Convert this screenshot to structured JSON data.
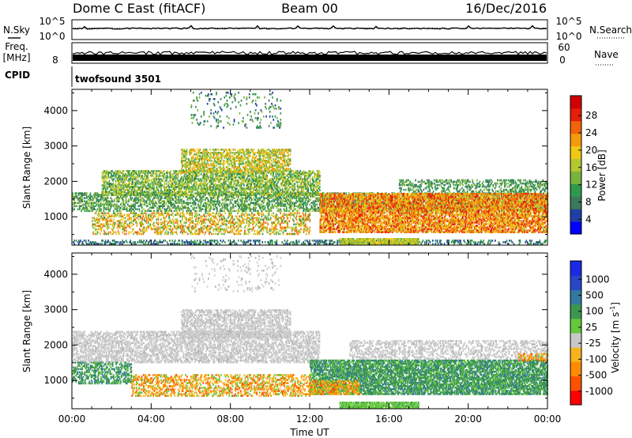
{
  "header": {
    "station": "Dome C East (fitACF)",
    "beam": "Beam 00",
    "date": "16/Dec/2016"
  },
  "noise_panel": {
    "left_label": "N.Sky",
    "right_label": "N.Search",
    "left_ticks": [
      "10^5",
      "10^0"
    ],
    "right_ticks": [
      "10^5",
      "10^0"
    ]
  },
  "freq_panel": {
    "left_label_line1": "Freq.",
    "left_label_line2": "[MHz]",
    "left_tick": "8",
    "right_label": "Nave",
    "right_ticks": [
      "60",
      "0"
    ]
  },
  "cpid_panel": {
    "label": "CPID",
    "program": "twofsound 3501"
  },
  "chart_data": [
    {
      "type": "heatmap",
      "name": "power",
      "ylabel": "Slant Range [km]",
      "yticks": [
        1000,
        2000,
        3000,
        4000
      ],
      "ylim": [
        200,
        4600
      ],
      "xlim": [
        0,
        24
      ],
      "xticks": [
        0,
        4,
        8,
        12,
        16,
        20,
        24
      ],
      "xticklabels": [
        "00:00",
        "04:00",
        "08:00",
        "12:00",
        "16:00",
        "20:00",
        "00:00"
      ],
      "colorbar": {
        "label": "Power [dB]",
        "ticks": [
          "28",
          "24",
          "20",
          "16",
          "12",
          "8",
          "4"
        ],
        "colors": [
          "#0000ff",
          "#1f3fa6",
          "#3a7a5a",
          "#2f9a4a",
          "#78b43c",
          "#b4c832",
          "#f0c814",
          "#f59a0a",
          "#f0640a",
          "#e61e0a",
          "#d20000"
        ]
      },
      "echo_regions": [
        {
          "t": [
            0.0,
            24.0
          ],
          "r": [
            1150,
            1650
          ],
          "density": 0.45,
          "level": [
            0.15,
            0.5
          ]
        },
        {
          "t": [
            0.0,
            24.0
          ],
          "r": [
            220,
            320
          ],
          "density": 0.3,
          "level": [
            0.05,
            0.35
          ]
        },
        {
          "t": [
            1.5,
            12.5
          ],
          "r": [
            1600,
            2300
          ],
          "density": 0.55,
          "level": [
            0.2,
            0.6
          ]
        },
        {
          "t": [
            5.5,
            11.0
          ],
          "r": [
            2250,
            2900
          ],
          "density": 0.5,
          "level": [
            0.3,
            0.75
          ]
        },
        {
          "t": [
            6.0,
            10.5
          ],
          "r": [
            3500,
            4500
          ],
          "density": 0.08,
          "level": [
            0.1,
            0.4
          ]
        },
        {
          "t": [
            1.0,
            12.0
          ],
          "r": [
            500,
            1100
          ],
          "density": 0.35,
          "level": [
            0.3,
            0.85
          ]
        },
        {
          "t": [
            12.5,
            24.0
          ],
          "r": [
            550,
            1650
          ],
          "density": 0.7,
          "level": [
            0.5,
            0.95
          ]
        },
        {
          "t": [
            13.5,
            17.5
          ],
          "r": [
            220,
            400
          ],
          "density": 0.85,
          "level": [
            0.35,
            0.65
          ]
        },
        {
          "t": [
            16.5,
            24.0
          ],
          "r": [
            1700,
            2050
          ],
          "density": 0.35,
          "level": [
            0.15,
            0.45
          ]
        }
      ]
    },
    {
      "type": "heatmap",
      "name": "velocity",
      "ylabel": "Slant Range [km]",
      "yticks": [
        1000,
        2000,
        3000,
        4000
      ],
      "ylim": [
        200,
        4600
      ],
      "xlim": [
        0,
        24
      ],
      "xlabel": "Time UT",
      "xticks": [
        0,
        4,
        8,
        12,
        16,
        20,
        24
      ],
      "xticklabels": [
        "00:00",
        "04:00",
        "08:00",
        "12:00",
        "16:00",
        "20:00",
        "00:00"
      ],
      "colorbar": {
        "label": "Velocity [m s",
        "label_superscript": "-1",
        "label_close": "]",
        "ticks": [
          "1000",
          "500",
          "100",
          "25",
          "-25",
          "-100",
          "-500",
          "-1000"
        ],
        "colors": [
          "#ff0000",
          "#ff5000",
          "#ff8c00",
          "#f5b41e",
          "#c8c8c8",
          "#64c83c",
          "#3c9650",
          "#3278a0",
          "#2846c8",
          "#1e28e6"
        ]
      },
      "echo_regions": [
        {
          "t": [
            0.0,
            12.5
          ],
          "r": [
            1500,
            2400
          ],
          "density": 0.5,
          "kind": "ground"
        },
        {
          "t": [
            5.5,
            11.0
          ],
          "r": [
            2200,
            3000
          ],
          "density": 0.5,
          "kind": "ground"
        },
        {
          "t": [
            6.0,
            10.5
          ],
          "r": [
            3500,
            4500
          ],
          "density": 0.06,
          "kind": "ground"
        },
        {
          "t": [
            0.0,
            3.0
          ],
          "r": [
            900,
            1500
          ],
          "density": 0.45,
          "kind": "toward"
        },
        {
          "t": [
            3.0,
            12.0
          ],
          "r": [
            550,
            1150
          ],
          "density": 0.4,
          "kind": "away"
        },
        {
          "t": [
            12.0,
            24.0
          ],
          "r": [
            600,
            1550
          ],
          "density": 0.7,
          "kind": "toward"
        },
        {
          "t": [
            12.0,
            14.5
          ],
          "r": [
            600,
            1000
          ],
          "density": 0.6,
          "kind": "away"
        },
        {
          "t": [
            13.5,
            17.5
          ],
          "r": [
            220,
            400
          ],
          "density": 0.85,
          "kind": "toward_light"
        },
        {
          "t": [
            14.0,
            24.0
          ],
          "r": [
            1600,
            2100
          ],
          "density": 0.35,
          "kind": "ground"
        },
        {
          "t": [
            22.5,
            24.0
          ],
          "r": [
            1550,
            1750
          ],
          "density": 0.5,
          "kind": "away"
        }
      ]
    }
  ]
}
